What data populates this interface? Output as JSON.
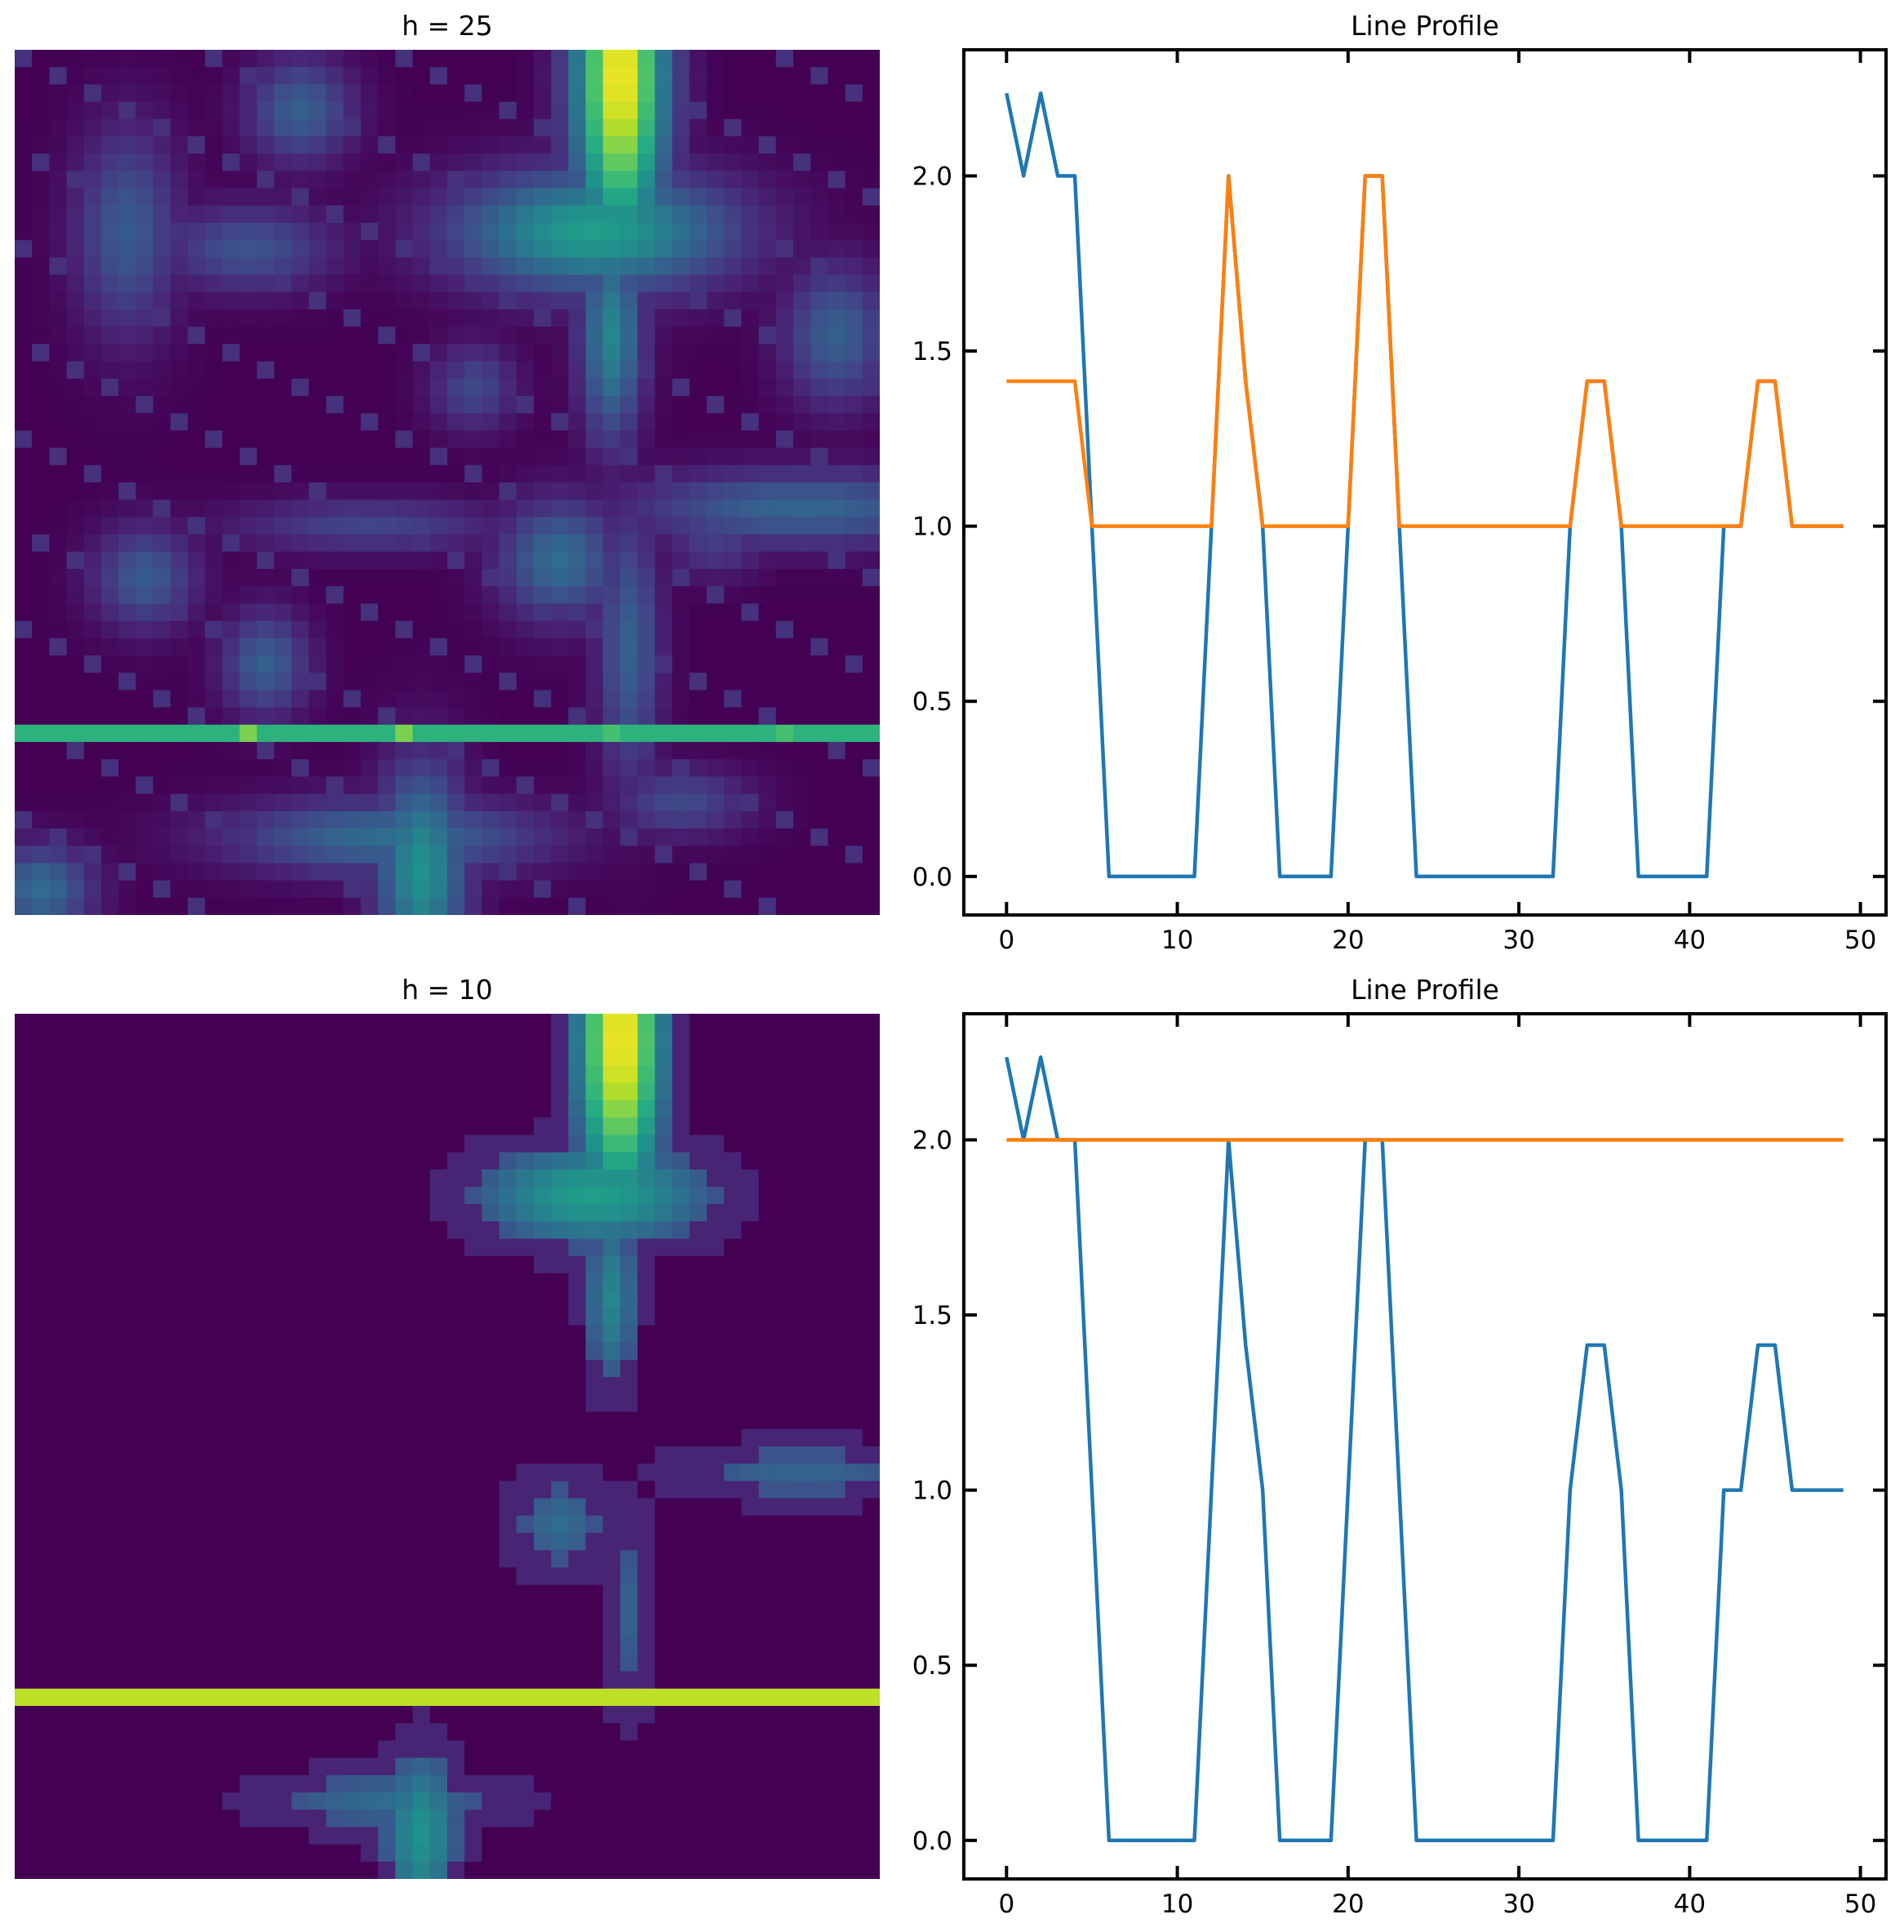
{
  "panels": {
    "top_left": {
      "title": "h = 25"
    },
    "top_right": {
      "title": "Line Profile"
    },
    "bottom_left": {
      "title": "h = 10"
    },
    "bottom_right": {
      "title": "Line Profile"
    }
  },
  "colors": {
    "series_blue": "#1f77b4",
    "series_orange": "#ff7f0e",
    "viridis_low": "#440154",
    "viridis_band_h25": "#2db27d",
    "viridis_band_h10": "#bddf26"
  },
  "chart_data": [
    {
      "type": "heatmap",
      "title": "h = 25",
      "grid": [
        50,
        50
      ],
      "colormap": "viridis",
      "highlight_row": 39,
      "axes_visible": false
    },
    {
      "type": "line",
      "title": "Line Profile",
      "xlabel": "",
      "ylabel": "",
      "xlim": [
        -2.5,
        51.5
      ],
      "ylim": [
        -0.11,
        2.36
      ],
      "xticks": [
        0,
        10,
        20,
        30,
        40,
        50
      ],
      "yticks": [
        0.0,
        0.5,
        1.0,
        1.5,
        2.0
      ],
      "xtick_labels": [
        "0",
        "10",
        "20",
        "30",
        "40",
        "50"
      ],
      "ytick_labels": [
        "0.0",
        "0.5",
        "1.0",
        "1.5",
        "2.0"
      ],
      "x": [
        0,
        1,
        2,
        3,
        4,
        5,
        6,
        7,
        8,
        9,
        10,
        11,
        12,
        13,
        14,
        15,
        16,
        17,
        18,
        19,
        20,
        21,
        22,
        23,
        24,
        25,
        26,
        27,
        28,
        29,
        30,
        31,
        32,
        33,
        34,
        35,
        36,
        37,
        38,
        39,
        40,
        41,
        42,
        43,
        44,
        45,
        46,
        47,
        48,
        49
      ],
      "series": [
        {
          "color": "#1f77b4",
          "values": [
            2.236,
            2.0,
            2.236,
            2.0,
            2.0,
            1.0,
            0,
            0,
            0,
            0,
            0,
            0,
            1.0,
            2.0,
            1.414,
            1.0,
            0,
            0,
            0,
            0,
            1.0,
            2.0,
            2.0,
            1.0,
            0,
            0,
            0,
            0,
            0,
            0,
            0,
            0,
            0,
            1.0,
            1.414,
            1.414,
            1.0,
            0,
            0,
            0,
            0,
            0,
            1.0,
            1.0,
            1.414,
            1.414,
            1.0,
            1.0,
            1.0,
            1.0
          ]
        },
        {
          "color": "#ff7f0e",
          "values": [
            1.414,
            1.414,
            1.414,
            1.414,
            1.414,
            1.0,
            1.0,
            1.0,
            1.0,
            1.0,
            1.0,
            1.0,
            1.0,
            2.0,
            1.414,
            1.0,
            1.0,
            1.0,
            1.0,
            1.0,
            1.0,
            2.0,
            2.0,
            1.0,
            1.0,
            1.0,
            1.0,
            1.0,
            1.0,
            1.0,
            1.0,
            1.0,
            1.0,
            1.0,
            1.414,
            1.414,
            1.0,
            1.0,
            1.0,
            1.0,
            1.0,
            1.0,
            1.0,
            1.0,
            1.414,
            1.414,
            1.0,
            1.0,
            1.0,
            1.0
          ]
        }
      ]
    },
    {
      "type": "heatmap",
      "title": "h = 10",
      "grid": [
        50,
        50
      ],
      "colormap": "viridis",
      "highlight_row": 39,
      "axes_visible": false
    },
    {
      "type": "line",
      "title": "Line Profile",
      "xlabel": "",
      "ylabel": "",
      "xlim": [
        -2.5,
        51.5
      ],
      "ylim": [
        -0.11,
        2.36
      ],
      "xticks": [
        0,
        10,
        20,
        30,
        40,
        50
      ],
      "yticks": [
        0.0,
        0.5,
        1.0,
        1.5,
        2.0
      ],
      "xtick_labels": [
        "0",
        "10",
        "20",
        "30",
        "40",
        "50"
      ],
      "ytick_labels": [
        "0.0",
        "0.5",
        "1.0",
        "1.5",
        "2.0"
      ],
      "x": [
        0,
        1,
        2,
        3,
        4,
        5,
        6,
        7,
        8,
        9,
        10,
        11,
        12,
        13,
        14,
        15,
        16,
        17,
        18,
        19,
        20,
        21,
        22,
        23,
        24,
        25,
        26,
        27,
        28,
        29,
        30,
        31,
        32,
        33,
        34,
        35,
        36,
        37,
        38,
        39,
        40,
        41,
        42,
        43,
        44,
        45,
        46,
        47,
        48,
        49
      ],
      "series": [
        {
          "color": "#1f77b4",
          "values": [
            2.236,
            2.0,
            2.236,
            2.0,
            2.0,
            1.0,
            0,
            0,
            0,
            0,
            0,
            0,
            1.0,
            2.0,
            1.414,
            1.0,
            0,
            0,
            0,
            0,
            1.0,
            2.0,
            2.0,
            1.0,
            0,
            0,
            0,
            0,
            0,
            0,
            0,
            0,
            0,
            1.0,
            1.414,
            1.414,
            1.0,
            0,
            0,
            0,
            0,
            0,
            1.0,
            1.0,
            1.414,
            1.414,
            1.0,
            1.0,
            1.0,
            1.0
          ]
        },
        {
          "color": "#ff7f0e",
          "values": [
            2,
            2,
            2,
            2,
            2,
            2,
            2,
            2,
            2,
            2,
            2,
            2,
            2,
            2,
            2,
            2,
            2,
            2,
            2,
            2,
            2,
            2,
            2,
            2,
            2,
            2,
            2,
            2,
            2,
            2,
            2,
            2,
            2,
            2,
            2,
            2,
            2,
            2,
            2,
            2,
            2,
            2,
            2,
            2,
            2,
            2,
            2,
            2,
            2,
            2
          ]
        }
      ]
    }
  ]
}
